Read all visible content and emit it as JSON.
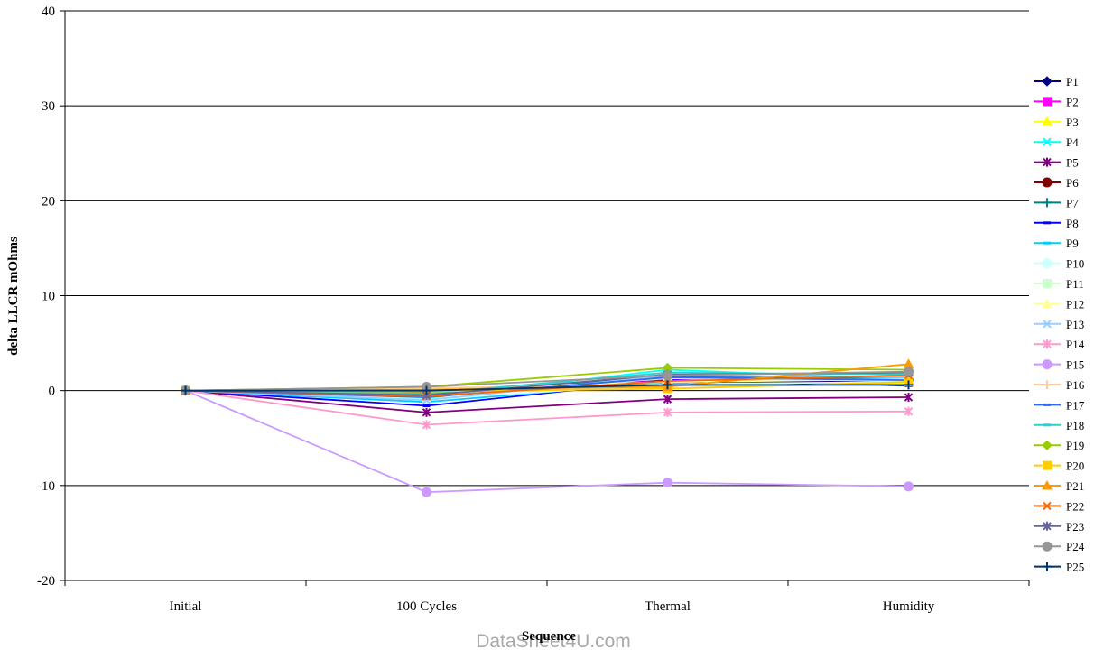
{
  "watermark": "DataSheet4U.com",
  "chart_data": {
    "type": "line",
    "title": "",
    "xlabel": "Sequence",
    "ylabel": "delta LLCR mOhms",
    "ylim": [
      -20,
      40
    ],
    "yticks": [
      -20,
      -10,
      0,
      10,
      20,
      30,
      40
    ],
    "grid": "horizontal",
    "legend_position": "right",
    "categories": [
      "Initial",
      "100 Cycles",
      "Thermal",
      "Humidity"
    ],
    "series": [
      {
        "name": "P1",
        "color": "#000080",
        "marker": "diamond",
        "values": [
          0,
          -0.3,
          0.8,
          1.0
        ]
      },
      {
        "name": "P2",
        "color": "#FF00FF",
        "marker": "square",
        "values": [
          0,
          -0.5,
          1.2,
          1.5
        ]
      },
      {
        "name": "P3",
        "color": "#FFFF00",
        "marker": "triangle",
        "values": [
          0,
          0.1,
          0.6,
          0.8
        ]
      },
      {
        "name": "P4",
        "color": "#00FFFF",
        "marker": "x",
        "values": [
          0,
          -0.8,
          2.2,
          1.2
        ]
      },
      {
        "name": "P5",
        "color": "#800080",
        "marker": "star",
        "values": [
          0,
          -2.3,
          -0.9,
          -0.7
        ]
      },
      {
        "name": "P6",
        "color": "#800000",
        "marker": "circle",
        "values": [
          0,
          -0.2,
          1.0,
          1.1
        ]
      },
      {
        "name": "P7",
        "color": "#008080",
        "marker": "plus",
        "values": [
          0,
          -0.4,
          1.5,
          1.3
        ]
      },
      {
        "name": "P8",
        "color": "#0000FF",
        "marker": "dash",
        "values": [
          0,
          -1.6,
          1.1,
          0.5
        ]
      },
      {
        "name": "P9",
        "color": "#00CCFF",
        "marker": "dash",
        "values": [
          0,
          -1.2,
          0.9,
          1.3
        ]
      },
      {
        "name": "P10",
        "color": "#CCFFFF",
        "marker": "circle",
        "values": [
          0,
          -0.9,
          0.7,
          0.9
        ]
      },
      {
        "name": "P11",
        "color": "#CCFFCC",
        "marker": "square",
        "values": [
          0,
          -0.6,
          1.3,
          1.0
        ]
      },
      {
        "name": "P12",
        "color": "#FFFF99",
        "marker": "triangle",
        "values": [
          0,
          0.2,
          0.9,
          1.2
        ]
      },
      {
        "name": "P13",
        "color": "#99CCFF",
        "marker": "x",
        "values": [
          0,
          -1.0,
          1.6,
          1.4
        ]
      },
      {
        "name": "P14",
        "color": "#FF99CC",
        "marker": "star",
        "values": [
          0,
          -3.6,
          -2.3,
          -2.2
        ]
      },
      {
        "name": "P15",
        "color": "#CC99FF",
        "marker": "circle",
        "values": [
          0,
          -10.7,
          -9.7,
          -10.1
        ]
      },
      {
        "name": "P16",
        "color": "#FFCC99",
        "marker": "plus",
        "values": [
          0,
          0.3,
          0.5,
          0.6
        ]
      },
      {
        "name": "P17",
        "color": "#3366FF",
        "marker": "dash",
        "values": [
          0,
          -0.7,
          1.4,
          1.1
        ]
      },
      {
        "name": "P18",
        "color": "#33CCCC",
        "marker": "dash",
        "values": [
          0,
          -0.3,
          1.9,
          1.7
        ]
      },
      {
        "name": "P19",
        "color": "#99CC00",
        "marker": "diamond",
        "values": [
          0,
          0.4,
          2.4,
          2.2
        ]
      },
      {
        "name": "P20",
        "color": "#FFCC00",
        "marker": "square",
        "values": [
          0,
          -0.1,
          0.2,
          0.9
        ]
      },
      {
        "name": "P21",
        "color": "#FF9900",
        "marker": "triangle",
        "values": [
          0,
          0.1,
          0.4,
          2.8
        ]
      },
      {
        "name": "P22",
        "color": "#FF6600",
        "marker": "x",
        "values": [
          0,
          -0.6,
          1.0,
          1.6
        ]
      },
      {
        "name": "P23",
        "color": "#666699",
        "marker": "star",
        "values": [
          0,
          -0.5,
          1.7,
          1.9
        ]
      },
      {
        "name": "P24",
        "color": "#969696",
        "marker": "circle",
        "values": [
          0,
          0.4,
          1.6,
          2.0
        ]
      },
      {
        "name": "P25",
        "color": "#003366",
        "marker": "plus",
        "values": [
          0,
          0.0,
          0.6,
          0.6
        ]
      }
    ]
  }
}
